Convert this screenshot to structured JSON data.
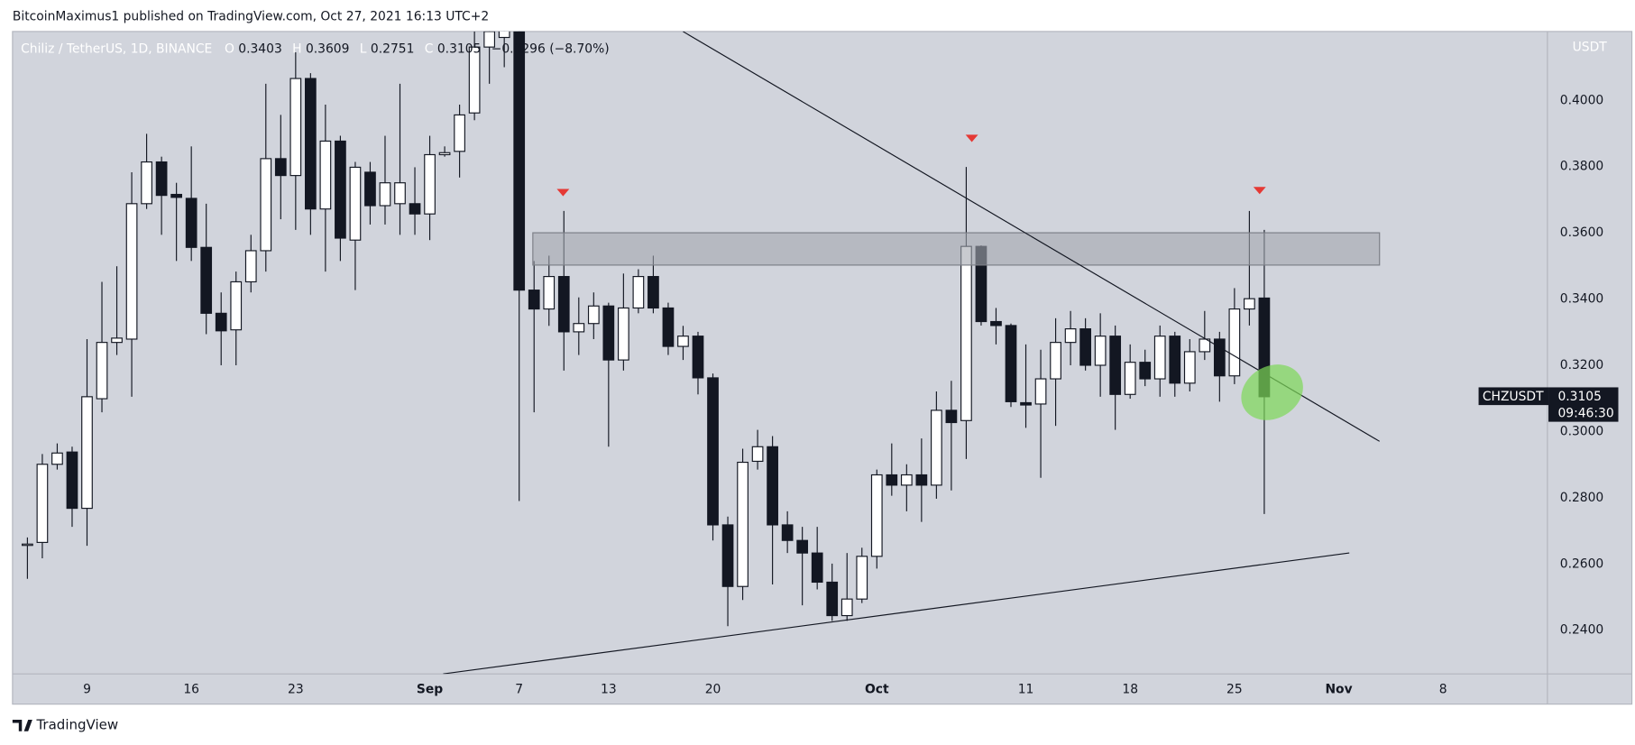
{
  "header": {
    "published": "BitcoinMaximus1 published on TradingView.com, Oct 27, 2021 16:13 UTC+2",
    "footer": "TradingView"
  },
  "chart_data": {
    "type": "candlestick",
    "title": "Chiliz / TetherUS, 1D, BINANCE",
    "ohlc_letters": [
      "O",
      "H",
      "L",
      "C"
    ],
    "change_label": "−0.0296 (−8.70%)",
    "unit": "USDT",
    "countdown": "09:46:30",
    "x": [
      "Aug 5",
      "Aug 6",
      "Aug 7",
      "Aug 8",
      "Aug 9",
      "Aug 10",
      "Aug 11",
      "Aug 12",
      "Aug 13",
      "Aug 14",
      "Aug 15",
      "Aug 16",
      "Aug 17",
      "Aug 18",
      "Aug 19",
      "Aug 20",
      "Aug 21",
      "Aug 22",
      "Aug 23",
      "Aug 24",
      "Aug 25",
      "Aug 26",
      "Aug 27",
      "Aug 28",
      "Aug 29",
      "Aug 30",
      "Aug 31",
      "Sep 1",
      "Sep 2",
      "Sep 3",
      "Sep 4",
      "Sep 5",
      "Sep 6",
      "Sep 7",
      "Sep 8",
      "Sep 9",
      "Sep 10",
      "Sep 11",
      "Sep 12",
      "Sep 13",
      "Sep 14",
      "Sep 15",
      "Sep 16",
      "Sep 17",
      "Sep 18",
      "Sep 19",
      "Sep 20",
      "Sep 21",
      "Sep 22",
      "Sep 23",
      "Sep 24",
      "Sep 25",
      "Sep 26",
      "Sep 27",
      "Sep 28",
      "Sep 29",
      "Sep 30",
      "Oct 1",
      "Oct 2",
      "Oct 3",
      "Oct 4",
      "Oct 5",
      "Oct 6",
      "Oct 7",
      "Oct 8",
      "Oct 9",
      "Oct 10",
      "Oct 11",
      "Oct 12",
      "Oct 13",
      "Oct 14",
      "Oct 15",
      "Oct 16",
      "Oct 17",
      "Oct 18",
      "Oct 19",
      "Oct 20",
      "Oct 21",
      "Oct 22",
      "Oct 23",
      "Oct 24",
      "Oct 25",
      "Oct 26",
      "Oct 27"
    ],
    "series": [
      {
        "name": "CHZUSDT",
        "up_color": "#ffffff",
        "down_color": "#131722",
        "edge_color": "#131722",
        "open": [
          0.2656,
          0.2665,
          0.2901,
          0.2938,
          0.2768,
          0.3099,
          0.3269,
          0.3279,
          0.3688,
          0.3814,
          0.3716,
          0.3704,
          0.3556,
          0.3357,
          0.3307,
          0.3452,
          0.3546,
          0.3824,
          0.3773,
          0.4066,
          0.3672,
          0.3877,
          0.3578,
          0.3783,
          0.3682,
          0.3688,
          0.3688,
          0.3657,
          0.3836,
          0.3846,
          0.3962,
          0.4161,
          0.419,
          0.4208,
          0.3427,
          0.337,
          0.3468,
          0.3301,
          0.3326,
          0.3379,
          0.3216,
          0.3373,
          0.3468,
          0.3373,
          0.3257,
          0.3288,
          0.3162,
          0.2718,
          0.2532,
          0.291,
          0.2954,
          0.2718,
          0.2671,
          0.2633,
          0.2545,
          0.2444,
          0.2494,
          0.2623,
          0.2869,
          0.2838,
          0.2869,
          0.2838,
          0.3064,
          0.3033,
          0.3559,
          0.3332,
          0.332,
          0.3087,
          0.3083,
          0.3159,
          0.3269,
          0.331,
          0.32,
          0.3288,
          0.3112,
          0.3209,
          0.3159,
          0.3288,
          0.3146,
          0.3241,
          0.3279,
          0.3168,
          0.337,
          0.3403
        ],
        "high": [
          0.268,
          0.2932,
          0.2964,
          0.2954,
          0.3279,
          0.3452,
          0.3499,
          0.3783,
          0.3899,
          0.383,
          0.3751,
          0.3861,
          0.3688,
          0.342,
          0.3483,
          0.3594,
          0.405,
          0.3956,
          0.4145,
          0.4082,
          0.3987,
          0.3893,
          0.3814,
          0.3814,
          0.3893,
          0.405,
          0.3798,
          0.3893,
          0.3861,
          0.3987,
          0.4208,
          0.43,
          0.435,
          0.44,
          0.3515,
          0.3531,
          0.3666,
          0.3405,
          0.342,
          0.3389,
          0.3477,
          0.349,
          0.3531,
          0.3389,
          0.3319,
          0.3301,
          0.3175,
          0.2743,
          0.2948,
          0.3005,
          0.2986,
          0.2759,
          0.2712,
          0.2712,
          0.2601,
          0.2633,
          0.2649,
          0.2885,
          0.2964,
          0.2901,
          0.2979,
          0.3121,
          0.3153,
          0.3799,
          0.3562,
          0.3373,
          0.3326,
          0.3263,
          0.3247,
          0.3342,
          0.3364,
          0.3342,
          0.3357,
          0.332,
          0.3263,
          0.3247,
          0.332,
          0.3301,
          0.3279,
          0.3364,
          0.3301,
          0.3433,
          0.3666,
          0.3609
        ],
        "low": [
          0.2555,
          0.2617,
          0.2885,
          0.2712,
          0.2655,
          0.3058,
          0.3231,
          0.3105,
          0.3672,
          0.3594,
          0.3515,
          0.3515,
          0.3294,
          0.32,
          0.32,
          0.342,
          0.3483,
          0.3641,
          0.3609,
          0.3594,
          0.3483,
          0.3515,
          0.3427,
          0.3625,
          0.3625,
          0.3594,
          0.3594,
          0.3578,
          0.383,
          0.3767,
          0.394,
          0.405,
          0.41,
          0.279,
          0.3058,
          0.3319,
          0.3184,
          0.3231,
          0.3279,
          0.2954,
          0.3184,
          0.3357,
          0.3357,
          0.3231,
          0.3216,
          0.3112,
          0.2671,
          0.2412,
          0.2491,
          0.2885,
          0.2538,
          0.2633,
          0.2475,
          0.2523,
          0.2428,
          0.2428,
          0.2482,
          0.2586,
          0.2806,
          0.2759,
          0.2727,
          0.2797,
          0.2822,
          0.2917,
          0.332,
          0.3263,
          0.3074,
          0.3011,
          0.286,
          0.3017,
          0.32,
          0.3184,
          0.3105,
          0.3005,
          0.3099,
          0.3137,
          0.3105,
          0.3105,
          0.3121,
          0.3216,
          0.309,
          0.3143,
          0.332,
          0.2751
        ],
        "close": [
          0.266,
          0.2901,
          0.2935,
          0.2768,
          0.3105,
          0.3269,
          0.3282,
          0.3688,
          0.3814,
          0.3713,
          0.3707,
          0.3556,
          0.3357,
          0.3304,
          0.3452,
          0.3546,
          0.3824,
          0.3773,
          0.4066,
          0.3672,
          0.3877,
          0.3584,
          0.3798,
          0.3682,
          0.3751,
          0.3751,
          0.3657,
          0.3836,
          0.3842,
          0.3956,
          0.4161,
          0.4208,
          0.4239,
          0.3427,
          0.337,
          0.3468,
          0.3301,
          0.3326,
          0.3379,
          0.3216,
          0.3373,
          0.3468,
          0.3373,
          0.3257,
          0.3288,
          0.3162,
          0.2718,
          0.2532,
          0.2907,
          0.2954,
          0.2718,
          0.2671,
          0.2633,
          0.2545,
          0.2444,
          0.2494,
          0.2623,
          0.2869,
          0.2838,
          0.2869,
          0.2838,
          0.3064,
          0.3027,
          0.3559,
          0.3332,
          0.332,
          0.309,
          0.308,
          0.3159,
          0.3269,
          0.331,
          0.32,
          0.3288,
          0.3112,
          0.3209,
          0.3159,
          0.3288,
          0.3146,
          0.3241,
          0.3279,
          0.3168,
          0.337,
          0.3401,
          0.3105
        ]
      }
    ],
    "xlim": [
      "Aug 4",
      "Nov 15"
    ],
    "xticks": [
      {
        "value": "Aug 9",
        "label": "9"
      },
      {
        "value": "Aug 16",
        "label": "16"
      },
      {
        "value": "Aug 23",
        "label": "23"
      },
      {
        "value": "Sep 1",
        "label": "Sep"
      },
      {
        "value": "Sep 7",
        "label": "7"
      },
      {
        "value": "Sep 13",
        "label": "13"
      },
      {
        "value": "Sep 20",
        "label": "20"
      },
      {
        "value": "Oct 1",
        "label": "Oct"
      },
      {
        "value": "Oct 11",
        "label": "11"
      },
      {
        "value": "Oct 18",
        "label": "18"
      },
      {
        "value": "Oct 25",
        "label": "25"
      },
      {
        "value": "Nov 1",
        "label": "Nov"
      },
      {
        "value": "Nov 8",
        "label": "8"
      }
    ],
    "ylim": [
      0.2268,
      0.4208
    ],
    "yticks": [
      {
        "value": 0.24,
        "label": "0.2400"
      },
      {
        "value": 0.26,
        "label": "0.2600"
      },
      {
        "value": 0.28,
        "label": "0.2800"
      },
      {
        "value": 0.3,
        "label": "0.3000"
      },
      {
        "value": 0.32,
        "label": "0.3200"
      },
      {
        "value": 0.34,
        "label": "0.3400"
      },
      {
        "value": 0.36,
        "label": "0.3600"
      },
      {
        "value": 0.38,
        "label": "0.3800"
      },
      {
        "value": 0.4,
        "label": "0.4000"
      }
    ],
    "grid": false,
    "background": "#d1d4dc"
  }
}
